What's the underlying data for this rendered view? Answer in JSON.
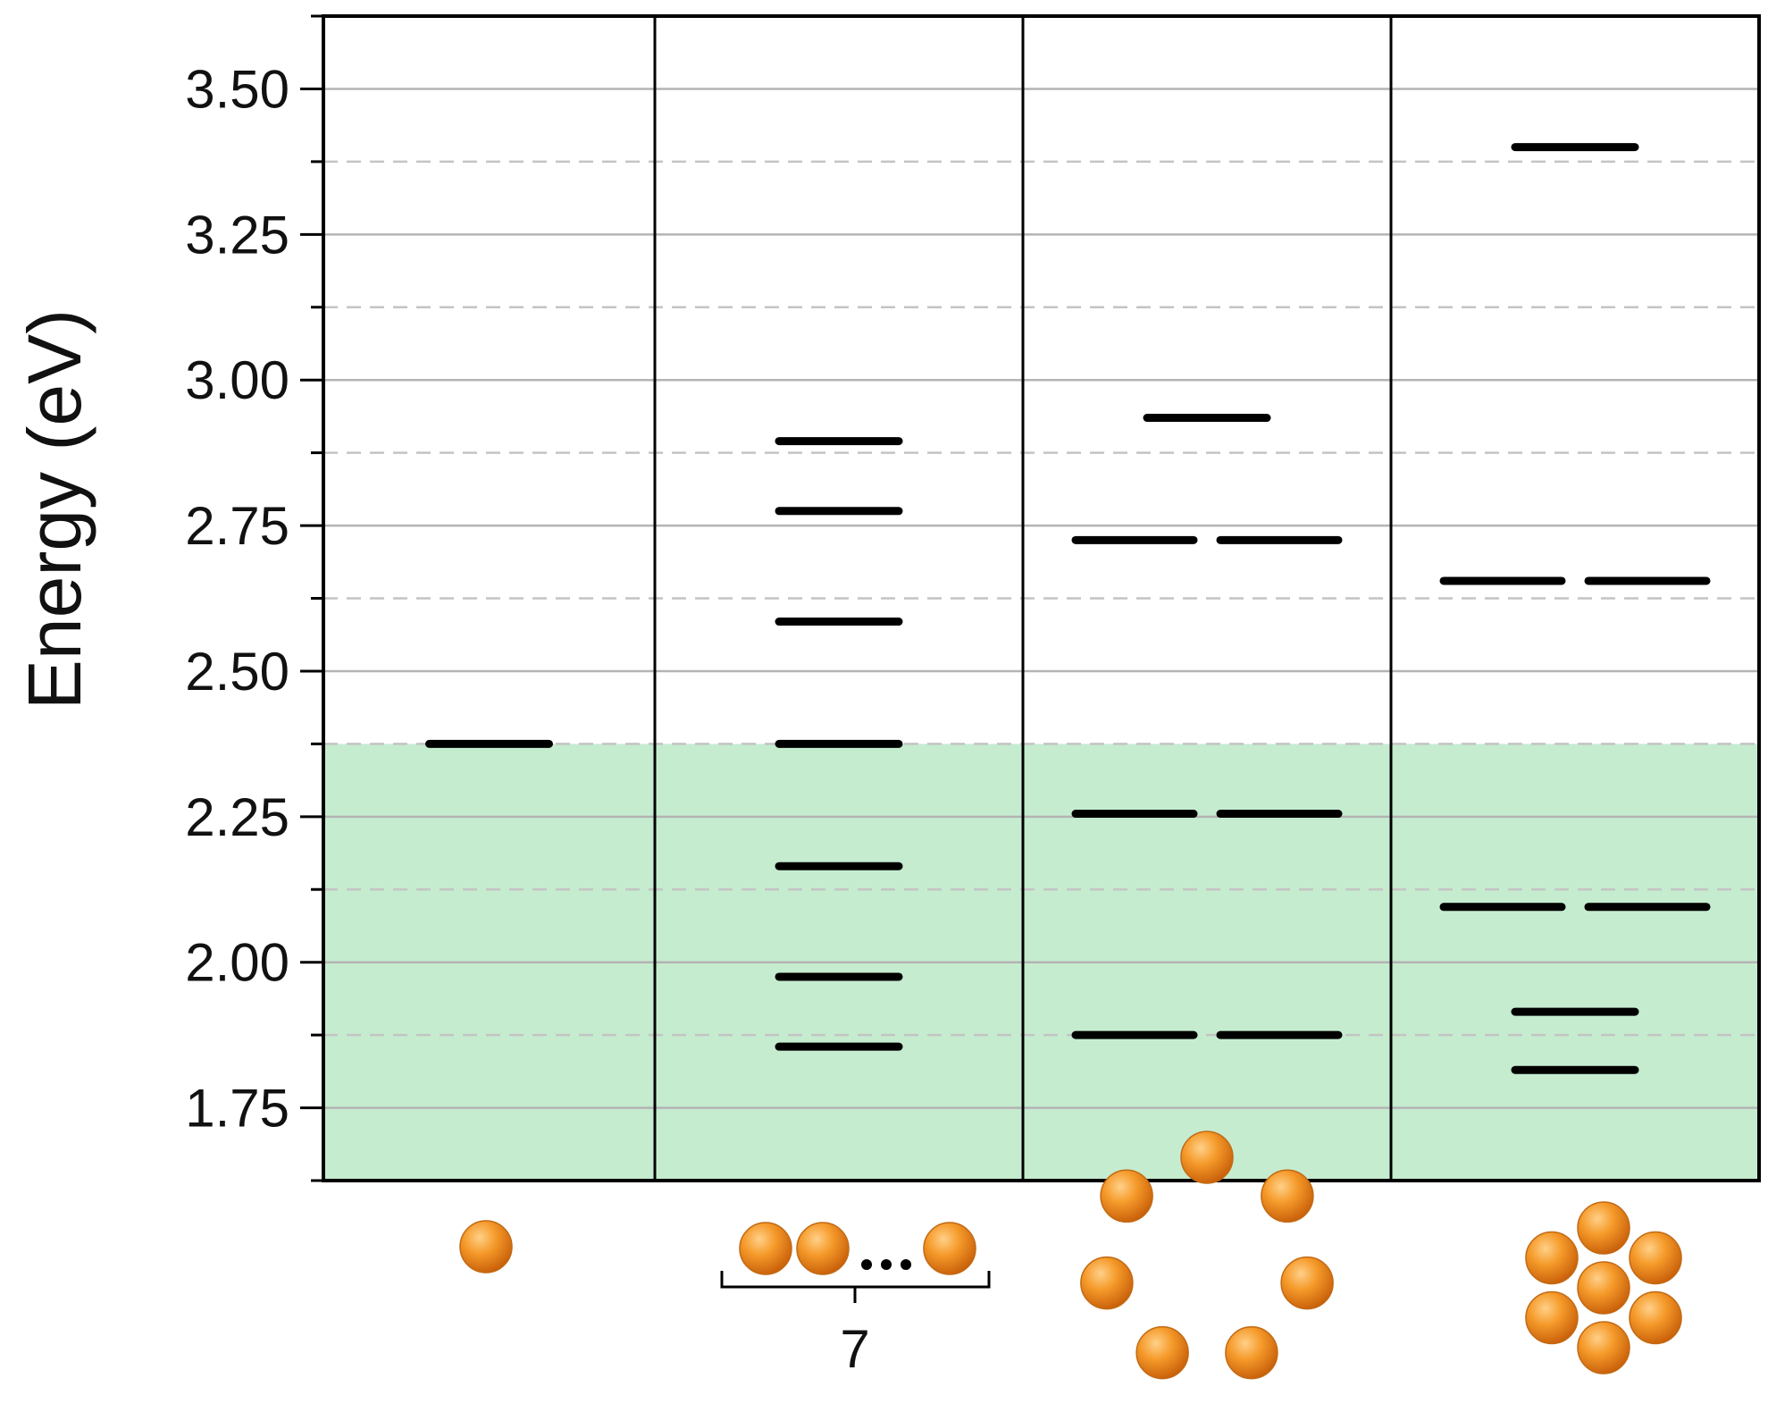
{
  "chart_data": {
    "type": "energy-level-diagram",
    "ylabel": "Energy (eV)",
    "ylim": [
      1.625,
      3.625
    ],
    "y_ticks": [
      "1.75",
      "2.00",
      "2.25",
      "2.50",
      "2.75",
      "3.00",
      "3.25",
      "3.50"
    ],
    "grid": {
      "major": true,
      "minor_dashed": true
    },
    "shaded_region": {
      "from": 1.625,
      "to": 2.375,
      "color": "#c6ecd0"
    },
    "level_color": "#000000",
    "particle_color": "#f08a1c",
    "panels": [
      {
        "arrangement": "single particle",
        "levels": [
          {
            "energy": 2.375,
            "degeneracy": 1
          }
        ]
      },
      {
        "arrangement": "linear chain",
        "count_label": "7",
        "levels": [
          {
            "energy": 1.855,
            "degeneracy": 1
          },
          {
            "energy": 1.975,
            "degeneracy": 1
          },
          {
            "energy": 2.165,
            "degeneracy": 1
          },
          {
            "energy": 2.375,
            "degeneracy": 1
          },
          {
            "energy": 2.585,
            "degeneracy": 1
          },
          {
            "energy": 2.775,
            "degeneracy": 1
          },
          {
            "energy": 2.895,
            "degeneracy": 1
          }
        ]
      },
      {
        "arrangement": "ring of 7",
        "levels": [
          {
            "energy": 1.875,
            "degeneracy": 2
          },
          {
            "energy": 2.255,
            "degeneracy": 2
          },
          {
            "energy": 2.725,
            "degeneracy": 2
          },
          {
            "energy": 2.935,
            "degeneracy": 1
          }
        ]
      },
      {
        "arrangement": "hexagonal cluster of 7",
        "levels": [
          {
            "energy": 1.815,
            "degeneracy": 1
          },
          {
            "energy": 1.915,
            "degeneracy": 1
          },
          {
            "energy": 2.095,
            "degeneracy": 2
          },
          {
            "energy": 2.655,
            "degeneracy": 2
          },
          {
            "energy": 3.4,
            "degeneracy": 1
          }
        ]
      }
    ]
  }
}
